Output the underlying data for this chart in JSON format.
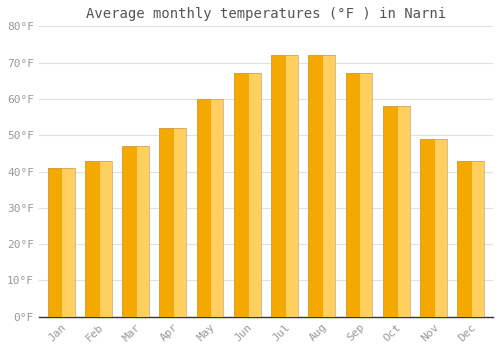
{
  "title": "Average monthly temperatures (°F ) in Narni",
  "months": [
    "Jan",
    "Feb",
    "Mar",
    "Apr",
    "May",
    "Jun",
    "Jul",
    "Aug",
    "Sep",
    "Oct",
    "Nov",
    "Dec"
  ],
  "values": [
    41,
    43,
    47,
    52,
    60,
    67,
    72,
    72,
    67,
    58,
    49,
    43
  ],
  "bar_color_left": "#F5A800",
  "bar_color_right": "#FFD060",
  "bar_edge_color": "#C8A060",
  "ylim": [
    0,
    80
  ],
  "yticks": [
    0,
    10,
    20,
    30,
    40,
    50,
    60,
    70,
    80
  ],
  "ytick_labels": [
    "0°F",
    "10°F",
    "20°F",
    "30°F",
    "40°F",
    "50°F",
    "60°F",
    "70°F",
    "80°F"
  ],
  "background_color": "#FFFFFF",
  "plot_bg_color": "#FFFFFF",
  "grid_color": "#E0E0E0",
  "title_fontsize": 10,
  "tick_fontsize": 8,
  "font_color": "#999999",
  "title_color": "#555555",
  "axis_line_color": "#333333"
}
